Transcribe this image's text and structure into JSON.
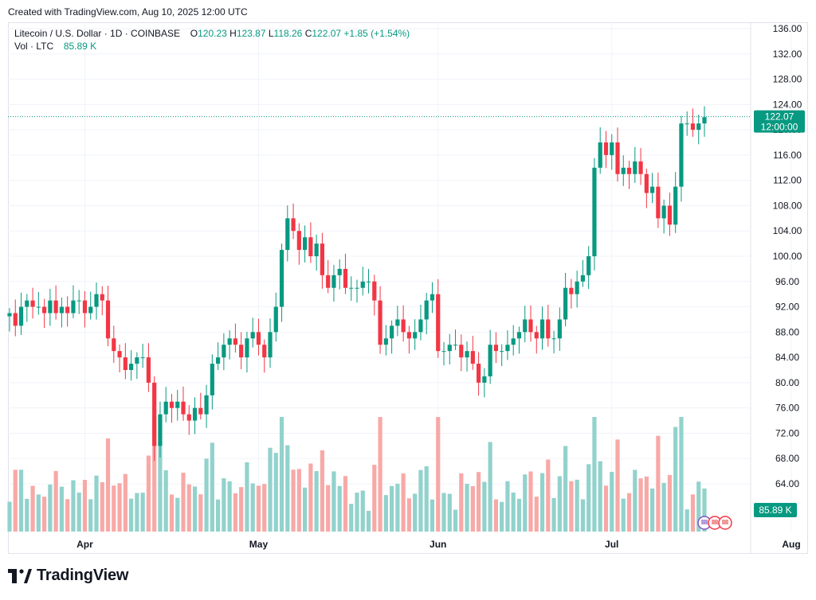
{
  "caption": "Created with TradingView.com, Aug 10, 2025 12:00 UTC",
  "legend": {
    "symbol": "Litecoin / U.S. Dollar · 1D · COINBASE",
    "o_label": "O",
    "o_value": "120.23",
    "h_label": "H",
    "h_value": "123.87",
    "l_label": "L",
    "l_value": "118.26",
    "c_label": "C",
    "c_value": "122.07",
    "change": "+1.85 (+1.54%)",
    "vol_label": "Vol · LTC",
    "vol_value": "85.89 K"
  },
  "price_tag": {
    "price": "122.07",
    "time": "12:00:00"
  },
  "volume_tag": "85.89 K",
  "logo_text": "TradingView",
  "colors": {
    "up": "#089981",
    "down": "#f23645",
    "up_vol": "#92d2cc",
    "down_vol": "#f7a9a7",
    "grid": "#f0f3fa"
  },
  "chart_data": {
    "type": "candlestick",
    "yaxis": {
      "min": 60,
      "max": 136,
      "ticks": [
        136.0,
        132.0,
        128.0,
        124.0,
        120.0,
        116.0,
        112.0,
        108.0,
        104.0,
        100.0,
        96.0,
        92.0,
        88.0,
        84.0,
        80.0,
        76.0,
        72.0,
        68.0,
        64.0
      ]
    },
    "xaxis_labels": [
      {
        "label": "Apr",
        "index": 13
      },
      {
        "label": "May",
        "index": 43
      },
      {
        "label": "Jun",
        "index": 74
      },
      {
        "label": "Jul",
        "index": 104
      },
      {
        "label": "Aug",
        "index": 135
      }
    ],
    "close_series": [
      91,
      89,
      92,
      93,
      92,
      92,
      91,
      93,
      91,
      92,
      91,
      93,
      93,
      91,
      92,
      94,
      93,
      87,
      85,
      84,
      82,
      83,
      84,
      84,
      80,
      70,
      75,
      77,
      76,
      77,
      75,
      74,
      76,
      75,
      78,
      83,
      84,
      86,
      87,
      86,
      84,
      87,
      88,
      86,
      84,
      88,
      92,
      101,
      106,
      104,
      101,
      103,
      100,
      102,
      97,
      95,
      97,
      98,
      95,
      95,
      95,
      96,
      96,
      93,
      86,
      87,
      89,
      90,
      88,
      87,
      88,
      90,
      93,
      94,
      85,
      85,
      86,
      86,
      84,
      85,
      83,
      80,
      81,
      86,
      85,
      85,
      86,
      87,
      88,
      90,
      88,
      87,
      90,
      87,
      87,
      90,
      95,
      94,
      96,
      97,
      100,
      114,
      118,
      116,
      118,
      113,
      114,
      113,
      115,
      113,
      110,
      111,
      106,
      108,
      105,
      111,
      121,
      121,
      120,
      121,
      122
    ]
  }
}
